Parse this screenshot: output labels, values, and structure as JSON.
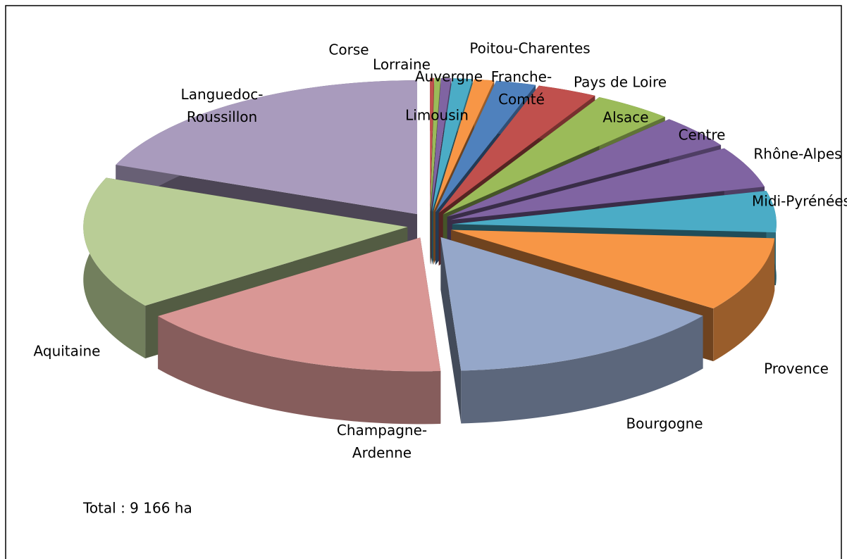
{
  "chart_data": {
    "type": "pie3d",
    "categories": [
      "Corse",
      "Lorraine",
      "Limousin",
      "Auvergne",
      "Poitou-Charentes",
      "Franche-Comté",
      "Pays de Loire",
      "Alsace",
      "Centre",
      "Rhône-Alpes",
      "Midi-Pyrénées",
      "Provence",
      "Bourgogne",
      "Champagne-Ardenne",
      "Aquitaine",
      "Languedoc-Roussillon"
    ],
    "values": [
      0.2,
      0.3,
      0.5,
      1,
      1,
      2,
      3,
      4,
      4,
      5,
      5,
      9,
      14,
      16,
      16,
      19
    ],
    "colors": [
      "#c0504d",
      "#9bbb59",
      "#8064a2",
      "#4bacc6",
      "#f79646",
      "#4f81bd",
      "#c0504d",
      "#9bbb59",
      "#8064a2",
      "#8064a2",
      "#4bacc6",
      "#f79646",
      "#95a7c9",
      "#d99795",
      "#b9cd96",
      "#a99bbd"
    ],
    "annotation": "Total : 9 166 ha"
  }
}
